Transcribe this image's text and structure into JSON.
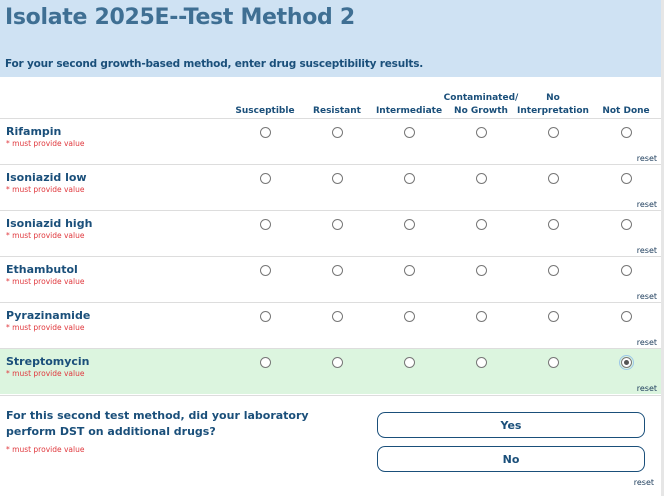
{
  "header": {
    "title": "Isolate 2025E--Test Method 2",
    "subtitle": "For your second growth-based method, enter drug susceptibility results."
  },
  "columns": [
    "Susceptible",
    "Resistant",
    "Intermediate",
    "Contaminated/ No Growth",
    "No Interpretation",
    "Not Done"
  ],
  "required_text": "* must provide value",
  "reset_label": "reset",
  "drugs": [
    {
      "name": "Rifampin",
      "selected": null
    },
    {
      "name": "Isoniazid low",
      "selected": null
    },
    {
      "name": "Isoniazid high",
      "selected": null
    },
    {
      "name": "Ethambutol",
      "selected": null
    },
    {
      "name": "Pyrazinamide",
      "selected": null
    },
    {
      "name": "Streptomycin",
      "selected": "Not Done"
    }
  ],
  "additional": {
    "question": "For this second test method, did your laboratory perform DST on additional drugs?",
    "yes_label": "Yes",
    "no_label": "No"
  }
}
